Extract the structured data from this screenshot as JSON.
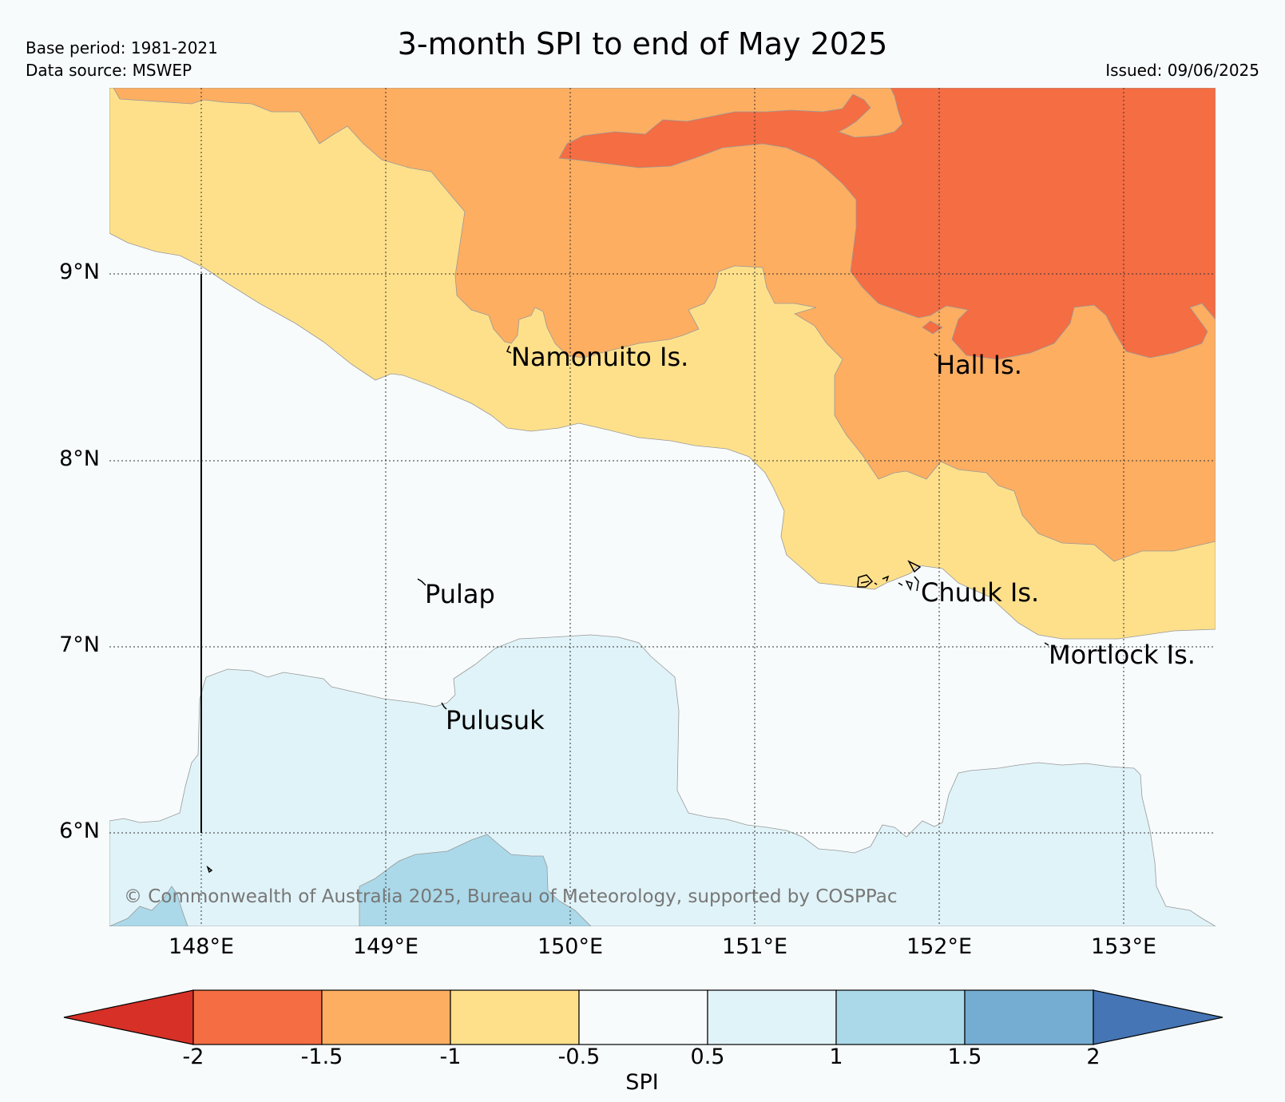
{
  "header": {
    "title": "3-month SPI to end of May 2025",
    "base_period": "Base period: 1981-2021",
    "data_source": "Data source: MSWEP",
    "issued": "Issued: 09/06/2025"
  },
  "axes": {
    "lat_labels": [
      "9°N",
      "8°N",
      "7°N",
      "6°N"
    ],
    "lon_labels": [
      "148°E",
      "149°E",
      "150°E",
      "151°E",
      "152°E",
      "153°E"
    ],
    "lon_range": [
      147.5,
      153.5
    ],
    "lat_range": [
      5.55,
      10.0
    ]
  },
  "places": [
    {
      "name": "Namonuito Is."
    },
    {
      "name": "Hall Is."
    },
    {
      "name": "Pulap"
    },
    {
      "name": "Chuuk Is."
    },
    {
      "name": "Mortlock Is."
    },
    {
      "name": "Pulusuk"
    }
  ],
  "copyright": "© Commonwealth of Australia 2025, Bureau of Meteorology, supported by COSPPac",
  "colorbar": {
    "label": "SPI",
    "ticks": [
      "-2",
      "-1.5",
      "-1",
      "-0.5",
      "0.5",
      "1",
      "1.5",
      "2"
    ],
    "colors": [
      "#d73027",
      "#f46d43",
      "#fdae61",
      "#fee08b",
      "#f7fbfc",
      "#e0f3f8",
      "#abd9e9",
      "#74add1",
      "#4575b4"
    ]
  }
}
